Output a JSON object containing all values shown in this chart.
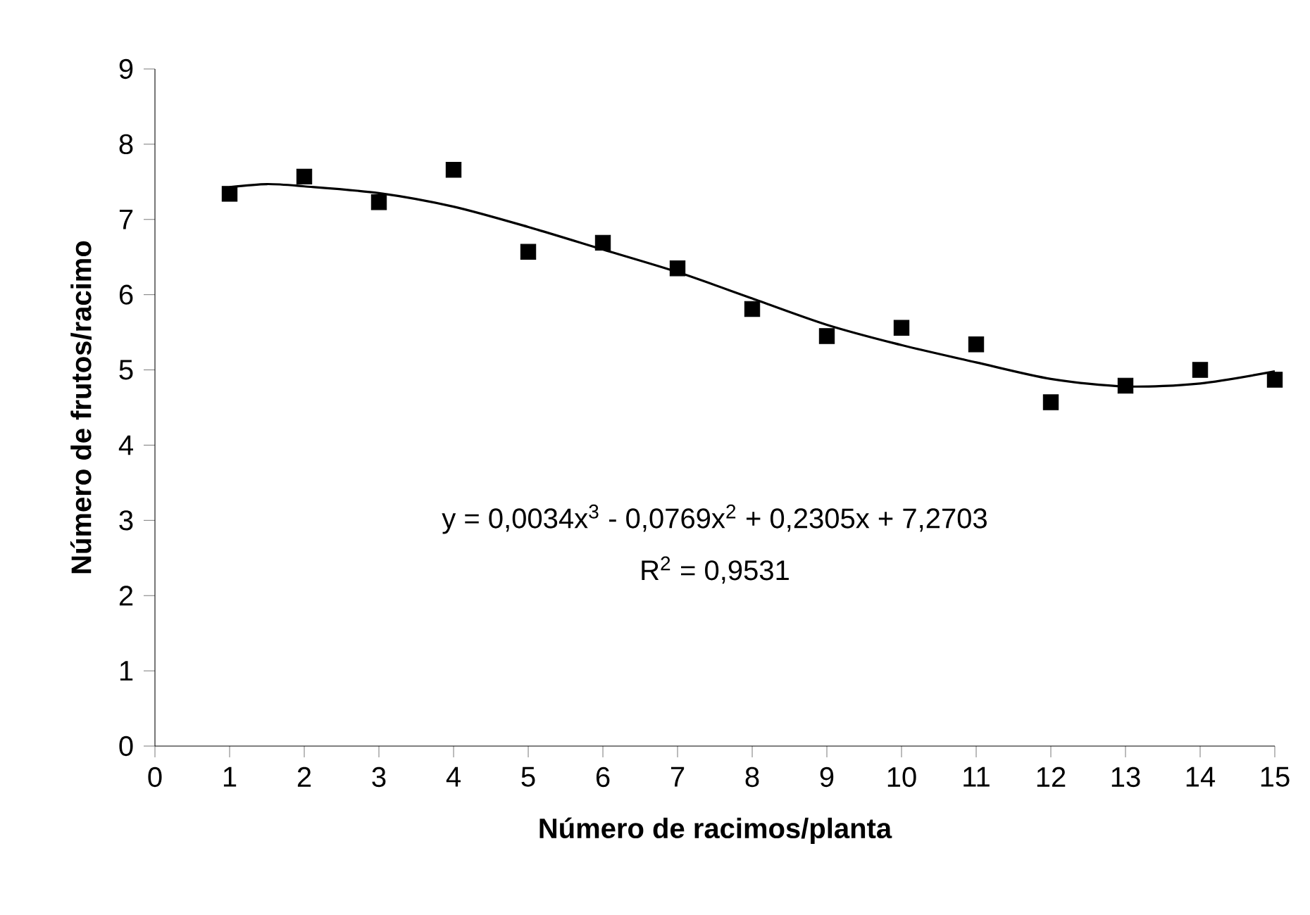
{
  "chart_data": {
    "type": "scatter",
    "xlabel": "Número de racimos/planta",
    "ylabel": "Número de frutos/racimo",
    "x": [
      1,
      2,
      3,
      4,
      5,
      6,
      7,
      8,
      9,
      10,
      11,
      12,
      13,
      14,
      15
    ],
    "series": [
      {
        "color": "#000000",
        "marker": "square",
        "values": [
          7.34,
          7.57,
          7.23,
          7.66,
          6.57,
          6.69,
          6.35,
          5.81,
          5.45,
          5.56,
          5.34,
          4.57,
          4.79,
          5.0,
          4.87
        ]
      },
      {
        "type": "line",
        "color": "#000000",
        "marker": "none",
        "line_style": "solid",
        "x": [
          1,
          1.5,
          2,
          3,
          4,
          5,
          6,
          7,
          8,
          9,
          10,
          11,
          12,
          13,
          14,
          15
        ],
        "values": [
          7.43,
          7.47,
          7.44,
          7.35,
          7.17,
          6.9,
          6.6,
          6.3,
          5.95,
          5.6,
          5.33,
          5.1,
          4.88,
          4.78,
          4.82,
          4.98
        ]
      }
    ],
    "xlim": [
      0,
      15
    ],
    "ylim": [
      0,
      9
    ],
    "xticks": [
      0,
      1,
      2,
      3,
      4,
      5,
      6,
      7,
      8,
      9,
      10,
      11,
      12,
      13,
      14,
      15
    ],
    "yticks": [
      0,
      1,
      2,
      3,
      4,
      5,
      6,
      7,
      8,
      9
    ],
    "annotations": [
      "y = 0,0034x$^{3}$ - 0,0769x$^{2}$ + 0,2305x + 7,2703",
      "R$^{2}$ = 0,9531"
    ]
  }
}
